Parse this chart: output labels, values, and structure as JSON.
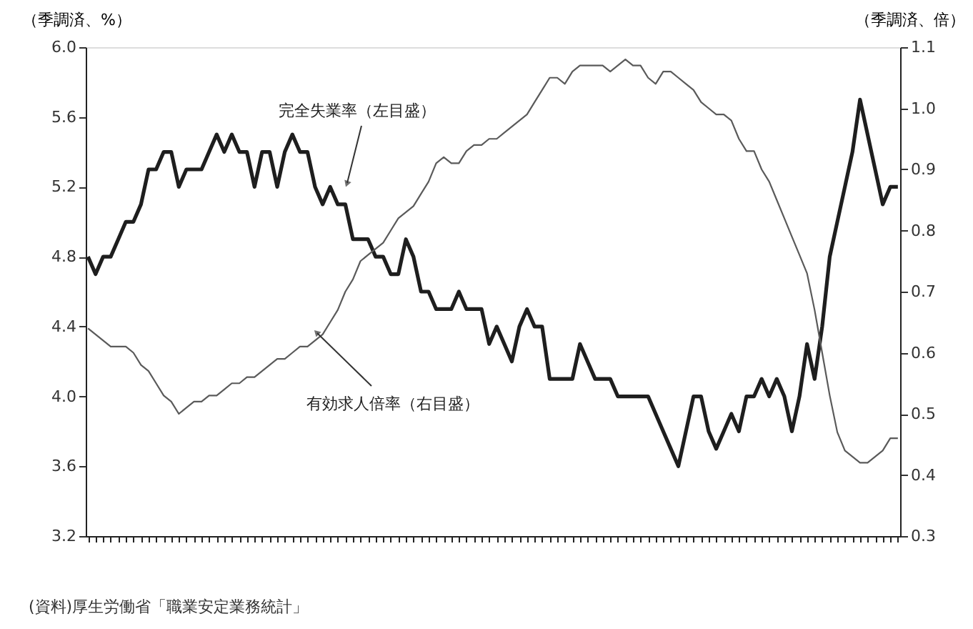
{
  "chart_data": {
    "type": "line",
    "categories": [
      null,
      null,
      null,
      null,
      null,
      null,
      null,
      null,
      null,
      null,
      null,
      null,
      null,
      null,
      null,
      null,
      null,
      null,
      null,
      null,
      null,
      null,
      null,
      null,
      null,
      null,
      null,
      null,
      null,
      null,
      null,
      null,
      null,
      null,
      null,
      null,
      null,
      null,
      null,
      null,
      null,
      null,
      null,
      null,
      null,
      null,
      null,
      null,
      null,
      null,
      null,
      null,
      null,
      null,
      null,
      null,
      null,
      null,
      null,
      null,
      null,
      null,
      null,
      null,
      null,
      null,
      null,
      null,
      null,
      null,
      null,
      null,
      null,
      null,
      null,
      null,
      null,
      null,
      null,
      null,
      null,
      null,
      null,
      null,
      null,
      null,
      null,
      null,
      null,
      null,
      null,
      null,
      null,
      null,
      null,
      null,
      null,
      null,
      null,
      null,
      null,
      null,
      null,
      null,
      null,
      null,
      null,
      null
    ],
    "ylabel": "（季調済、%）",
    "y2label": "（季調済、倍）",
    "ylim": [
      3.2,
      6.0
    ],
    "yticks": [
      3.2,
      3.6,
      {
        "value": 4,
        "label": "4.0"
      },
      4.4,
      4.8,
      5.2,
      5.6,
      {
        "value": 6,
        "label": "6.0"
      }
    ],
    "y2lim": [
      0.3,
      1.1
    ],
    "y2ticks": [
      0.3,
      0.4,
      0.5,
      0.6,
      0.7,
      0.8,
      0.9,
      {
        "value": 1,
        "label": "1.0"
      },
      1.1
    ],
    "series": [
      {
        "name": "完全失業率（左目盛）",
        "color": "#1e1e1e",
        "values": [
          4.8,
          4.7,
          4.8,
          4.8,
          4.9,
          5.0,
          5.0,
          5.1,
          5.3,
          5.3,
          5.4,
          5.4,
          5.2,
          5.3,
          5.3,
          5.3,
          5.4,
          5.5,
          5.4,
          5.5,
          5.4,
          5.4,
          5.2,
          5.4,
          5.4,
          5.2,
          5.4,
          5.5,
          5.4,
          5.4,
          5.2,
          5.1,
          5.2,
          5.1,
          5.1,
          4.9,
          4.9,
          4.9,
          4.8,
          4.8,
          4.7,
          4.7,
          4.9,
          4.8,
          4.6,
          4.6,
          4.5,
          4.5,
          4.5,
          4.6,
          4.5,
          4.5,
          4.5,
          4.3,
          4.4,
          4.3,
          4.2,
          4.4,
          4.5,
          4.4,
          4.4,
          4.1,
          4.1,
          4.1,
          4.1,
          4.3,
          4.2,
          4.1,
          4.1,
          4.1,
          4.0,
          4.0,
          4.0,
          4.0,
          4.0,
          3.9,
          3.8,
          3.7,
          3.6,
          3.8,
          4.0,
          4.0,
          3.8,
          3.7,
          3.8,
          3.9,
          3.8,
          4.0,
          4.0,
          4.1,
          4.0,
          4.1,
          4.0,
          3.8,
          4.0,
          4.3,
          4.1,
          4.4,
          4.8,
          5.0,
          5.2,
          5.4,
          5.7,
          5.5,
          5.3,
          5.1,
          5.2,
          5.2
        ]
      },
      {
        "name": "有効求人倍率（右目盛）",
        "color": "#5a5a5a",
        "axis": "y2",
        "values": [
          0.64,
          0.63,
          0.62,
          0.61,
          0.61,
          0.61,
          0.6,
          0.58,
          0.57,
          0.55,
          0.53,
          0.52,
          0.5,
          0.51,
          0.52,
          0.52,
          0.53,
          0.53,
          0.54,
          0.55,
          0.55,
          0.56,
          0.56,
          0.57,
          0.58,
          0.59,
          0.59,
          0.6,
          0.61,
          0.61,
          0.62,
          0.63,
          0.65,
          0.67,
          0.7,
          0.72,
          0.75,
          0.76,
          0.77,
          0.78,
          0.8,
          0.82,
          0.83,
          0.84,
          0.86,
          0.88,
          0.91,
          0.92,
          0.91,
          0.91,
          0.93,
          0.94,
          0.94,
          0.95,
          0.95,
          0.96,
          0.97,
          0.98,
          0.99,
          1.01,
          1.03,
          1.05,
          1.05,
          1.04,
          1.06,
          1.07,
          1.07,
          1.07,
          1.07,
          1.06,
          1.07,
          1.08,
          1.07,
          1.07,
          1.05,
          1.04,
          1.06,
          1.06,
          1.05,
          1.04,
          1.03,
          1.01,
          1.0,
          0.99,
          0.99,
          0.98,
          0.95,
          0.93,
          0.93,
          0.9,
          0.88,
          0.85,
          0.82,
          0.79,
          0.76,
          0.73,
          0.67,
          0.6,
          0.53,
          0.47,
          0.44,
          0.43,
          0.42,
          0.42,
          0.43,
          0.44,
          0.46,
          0.46
        ]
      }
    ],
    "annotations": [
      "(資料)厚生労働省「職業安定業務統計」"
    ],
    "grid": false,
    "tick_labels": "y"
  }
}
